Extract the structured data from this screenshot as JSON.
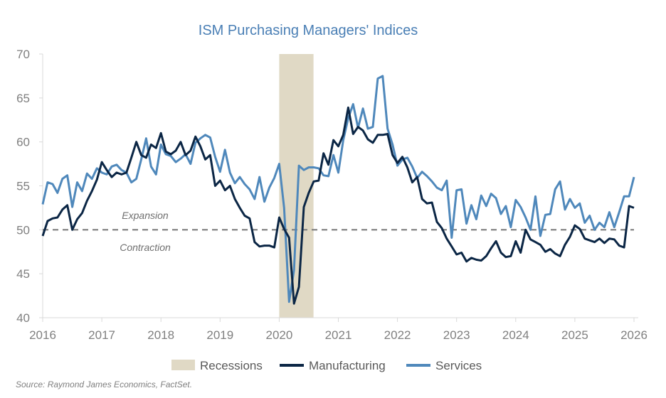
{
  "chart_data": {
    "type": "line",
    "title": "ISM Purchasing Managers' Indices",
    "xlabel": "",
    "ylabel": "",
    "xlim": [
      2016,
      2026
    ],
    "ylim": [
      40,
      70
    ],
    "x_ticks": [
      "2016",
      "2017",
      "2018",
      "2019",
      "2020",
      "2021",
      "2022",
      "2023",
      "2024",
      "2025",
      "2026"
    ],
    "y_ticks": [
      "40",
      "45",
      "50",
      "55",
      "60",
      "65",
      "70"
    ],
    "grid": false,
    "legend_position": "bottom",
    "reference_line": {
      "value": 50,
      "style": "dashed",
      "color": "#7f7f7f"
    },
    "annotations": {
      "above": "Expansion",
      "below": "Contraction"
    },
    "recession": {
      "name": "Recessions",
      "start": 2020.0,
      "end": 2020.58,
      "color": "#e0d9c5"
    },
    "x_start": "2016-01",
    "frequency": "monthly",
    "series": [
      {
        "name": "Manufacturing",
        "color": "#0b2645",
        "values": [
          49.3,
          51.0,
          51.3,
          51.4,
          52.3,
          52.8,
          50.0,
          51.2,
          51.9,
          53.3,
          54.4,
          55.7,
          57.7,
          56.8,
          56.0,
          56.5,
          56.3,
          56.5,
          58.2,
          60.0,
          58.5,
          58.2,
          59.7,
          59.3,
          61.0,
          58.9,
          58.6,
          59.0,
          60.0,
          58.5,
          59.0,
          60.6,
          59.5,
          58.0,
          58.5,
          55.0,
          55.6,
          54.5,
          55.0,
          53.5,
          52.5,
          51.6,
          51.3,
          48.6,
          48.1,
          48.2,
          48.2,
          48.0,
          51.4,
          50.1,
          49.1,
          41.6,
          43.5,
          52.6,
          54.2,
          55.5,
          55.6,
          58.7,
          57.4,
          60.2,
          59.5,
          60.8,
          63.9,
          60.9,
          61.7,
          61.3,
          60.3,
          59.9,
          60.8,
          60.8,
          60.9,
          58.5,
          57.6,
          58.3,
          57.1,
          55.4,
          56.0,
          53.5,
          53.0,
          53.1,
          50.9,
          50.2,
          49.0,
          48.1,
          47.2,
          47.4,
          46.4,
          46.8,
          46.6,
          46.5,
          47.0,
          47.9,
          48.7,
          47.4,
          46.9,
          47.0,
          48.7,
          47.4,
          50.0,
          48.9,
          48.6,
          48.3,
          47.5,
          47.8,
          47.3,
          47.0,
          48.3,
          49.2,
          50.5,
          50.1,
          49.0,
          48.8,
          48.6,
          49.0,
          48.5,
          49.0,
          48.9,
          48.2,
          48.0,
          52.7,
          52.5
        ]
      },
      {
        "name": "Services",
        "color": "#4f88bb",
        "values": [
          52.9,
          55.4,
          55.2,
          54.2,
          55.8,
          56.2,
          52.6,
          55.4,
          54.4,
          56.4,
          55.8,
          57.0,
          56.5,
          56.3,
          57.2,
          57.4,
          56.8,
          56.5,
          55.4,
          55.8,
          58.0,
          60.4,
          57.2,
          56.3,
          59.7,
          58.6,
          58.4,
          57.7,
          58.1,
          58.6,
          57.5,
          59.9,
          60.4,
          60.8,
          60.5,
          58.3,
          56.6,
          59.1,
          56.5,
          55.3,
          56.0,
          55.2,
          54.6,
          53.5,
          56.0,
          53.2,
          54.8,
          55.9,
          57.5,
          52.5,
          41.8,
          45.4,
          57.3,
          56.8,
          57.1,
          57.1,
          57.0,
          56.2,
          56.1,
          58.5,
          56.5,
          60.2,
          62.7,
          64.3,
          61.6,
          63.8,
          61.5,
          61.7,
          67.2,
          67.5,
          61.5,
          59.7,
          57.3,
          58.0,
          58.2,
          57.2,
          55.9,
          56.6,
          56.1,
          55.5,
          54.8,
          54.5,
          55.6,
          49.1,
          54.5,
          54.6,
          50.7,
          52.8,
          51.2,
          53.9,
          52.7,
          54.1,
          53.6,
          51.8,
          52.7,
          50.3,
          53.4,
          52.6,
          51.4,
          50.0,
          53.8,
          49.3,
          51.7,
          51.8,
          54.6,
          55.5,
          52.3,
          53.5,
          52.5,
          53.0,
          50.8,
          51.6,
          50.0,
          50.8,
          50.3,
          52.0,
          50.3,
          52.0,
          53.8,
          53.8,
          56.0
        ]
      }
    ],
    "source": "Source: Raymond James Economics, FactSet."
  }
}
